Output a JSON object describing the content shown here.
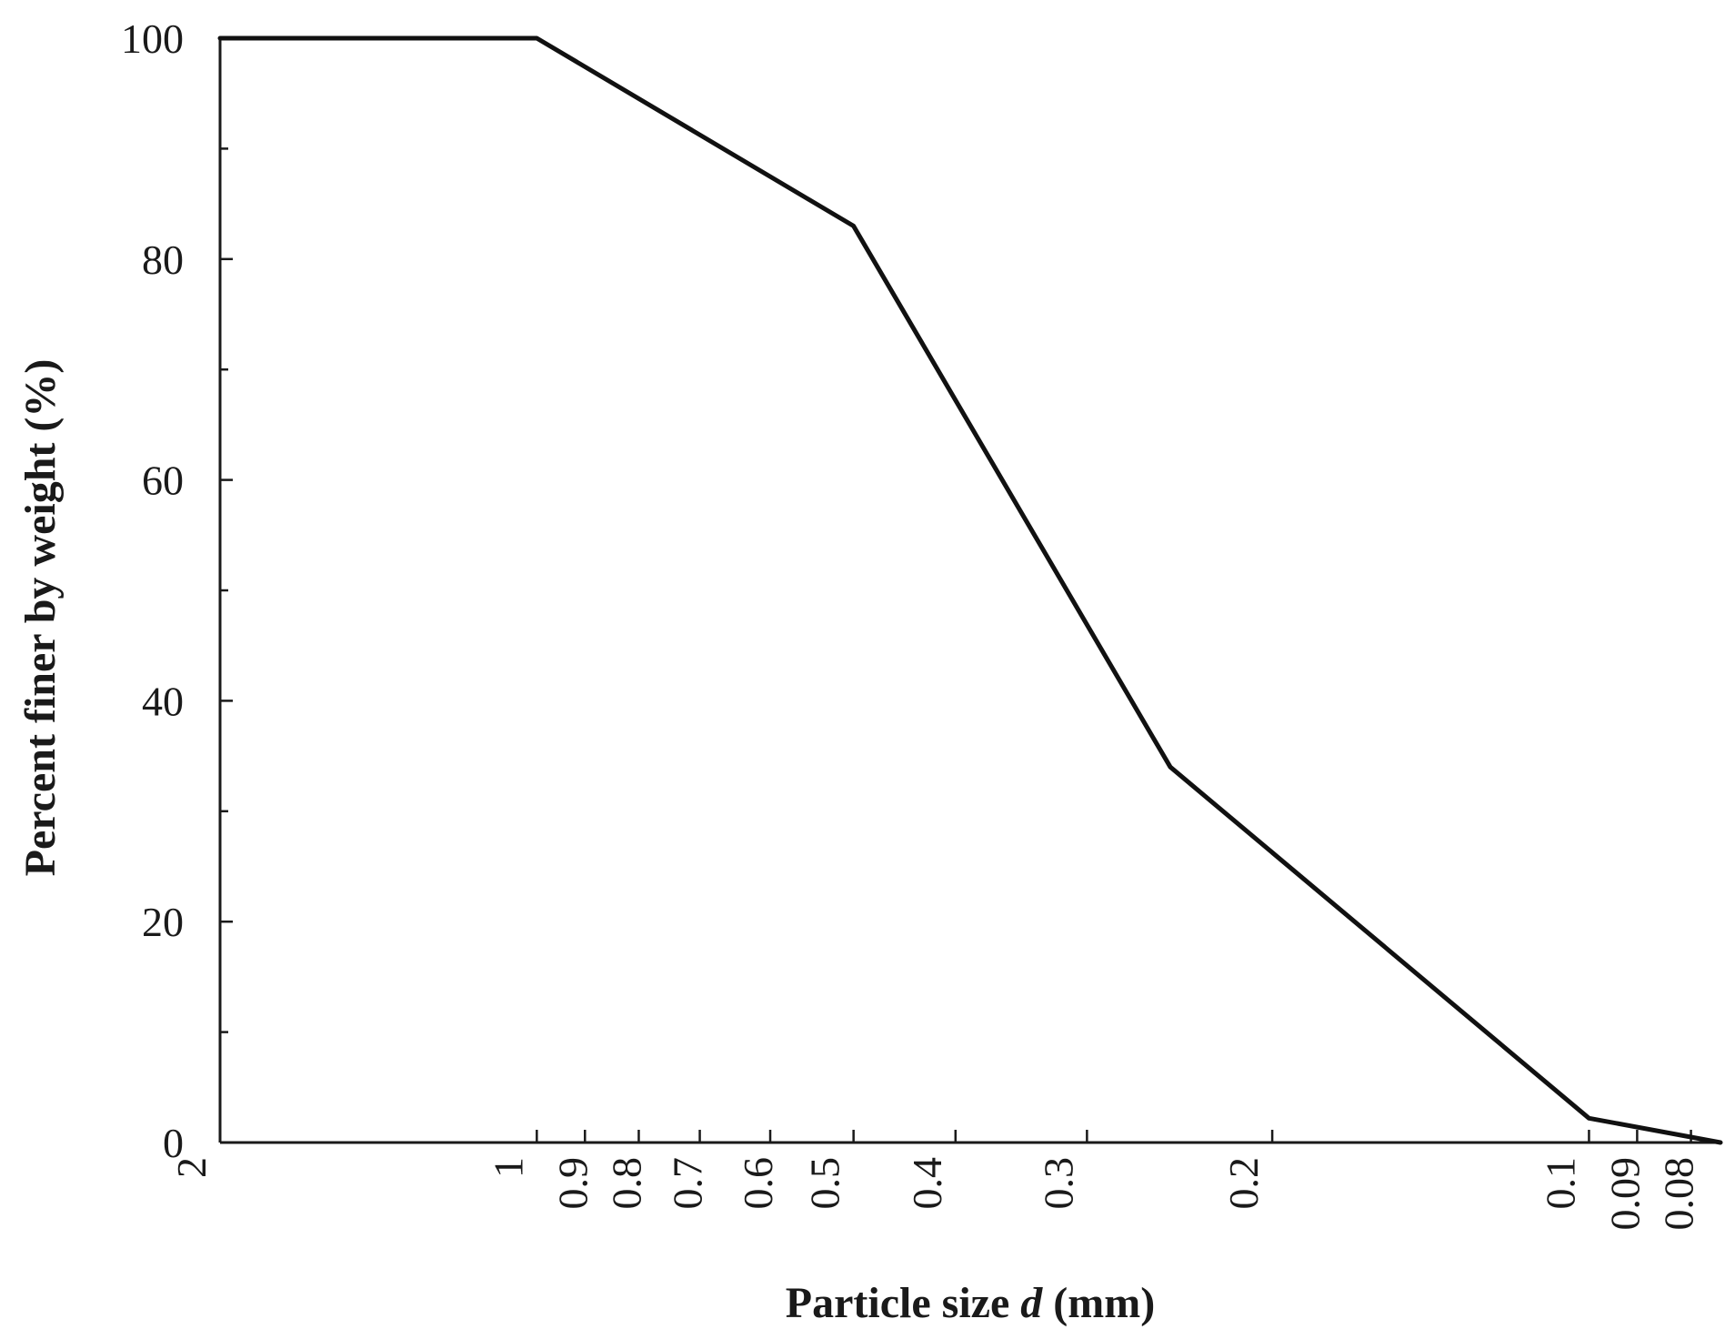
{
  "chart_data": {
    "type": "line",
    "x_scale": "log",
    "x_reversed": true,
    "xlabel_parts": {
      "before": "Particle size ",
      "var": "d",
      "after": " (mm)"
    },
    "ylabel": "Percent finer by weight (%)",
    "xlim": [
      2,
      0.075
    ],
    "ylim": [
      0,
      100
    ],
    "x_ticks": [
      {
        "value": 2,
        "label": "2"
      },
      {
        "value": 1,
        "label": "1"
      },
      {
        "value": 0.9,
        "label": "0.9"
      },
      {
        "value": 0.8,
        "label": "0.8"
      },
      {
        "value": 0.7,
        "label": "0.7"
      },
      {
        "value": 0.6,
        "label": "0.6"
      },
      {
        "value": 0.5,
        "label": "0.5"
      },
      {
        "value": 0.4,
        "label": "0.4"
      },
      {
        "value": 0.3,
        "label": "0.3"
      },
      {
        "value": 0.2,
        "label": "0.2"
      },
      {
        "value": 0.1,
        "label": "0.1"
      },
      {
        "value": 0.09,
        "label": "0.09"
      },
      {
        "value": 0.08,
        "label": "0.08"
      }
    ],
    "y_ticks_major": [
      {
        "value": 0,
        "label": "0"
      },
      {
        "value": 20,
        "label": "20"
      },
      {
        "value": 40,
        "label": "40"
      },
      {
        "value": 60,
        "label": "60"
      },
      {
        "value": 80,
        "label": "80"
      },
      {
        "value": 100,
        "label": "100"
      }
    ],
    "y_ticks_minor": [
      10,
      30,
      50,
      70,
      90
    ],
    "grid": false,
    "series": [
      {
        "color": "#111111",
        "x": [
          2,
          1,
          0.5,
          0.25,
          0.1,
          0.075
        ],
        "y": [
          100,
          100,
          83,
          34,
          2.2,
          0
        ]
      }
    ]
  }
}
